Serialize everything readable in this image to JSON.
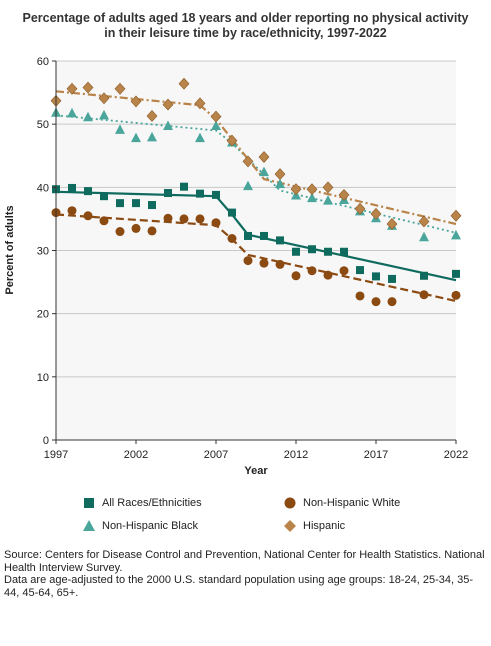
{
  "chart_data": {
    "type": "scatter",
    "title": "Percentage of adults aged 18 years and older reporting no physical activity in their leisure time by race/ethnicity, 1997-2022",
    "xlabel": "Year",
    "ylabel": "Percent of adults",
    "xlim": [
      1997,
      2022
    ],
    "ylim": [
      0,
      60
    ],
    "x_ticks": [
      "1997",
      "2002",
      "2007",
      "2012",
      "2017",
      "2022"
    ],
    "y_ticks": [
      "0",
      "10",
      "20",
      "30",
      "40",
      "50",
      "60"
    ],
    "grid": "horizontal",
    "legend_position": "bottom",
    "series": [
      {
        "name": "All Races/Ethnicities",
        "color": "#0f6b5e",
        "marker": "square",
        "trend_style": "solid",
        "x": [
          1997,
          1998,
          1999,
          2000,
          2001,
          2002,
          2003,
          2004,
          2005,
          2006,
          2007,
          2008,
          2009,
          2010,
          2011,
          2012,
          2013,
          2014,
          2015,
          2016,
          2017,
          2018,
          2020,
          2022
        ],
        "y": [
          39.7,
          39.9,
          39.4,
          38.6,
          37.5,
          37.5,
          37.2,
          39.1,
          40.1,
          39.0,
          38.8,
          36.0,
          32.3,
          32.3,
          31.6,
          29.8,
          30.2,
          29.8,
          29.8,
          26.9,
          25.9,
          25.5,
          26.0,
          26.3
        ],
        "trend": [
          [
            1997,
            39.3
          ],
          [
            2007,
            38.6
          ],
          [
            2008,
            35.7
          ],
          [
            2009,
            32.5
          ],
          [
            2022,
            25.3
          ]
        ]
      },
      {
        "name": "Non-Hispanic White",
        "color": "#8b4a12",
        "marker": "circle",
        "trend_style": "dashed",
        "x": [
          1997,
          1998,
          1999,
          2000,
          2001,
          2002,
          2003,
          2004,
          2005,
          2006,
          2007,
          2008,
          2009,
          2010,
          2011,
          2012,
          2013,
          2014,
          2015,
          2016,
          2017,
          2018,
          2020,
          2022
        ],
        "y": [
          36.0,
          36.3,
          35.5,
          34.7,
          33.0,
          33.5,
          33.1,
          35.1,
          35.0,
          35.0,
          34.4,
          31.9,
          28.4,
          28.0,
          27.8,
          26.0,
          26.8,
          26.1,
          26.8,
          22.8,
          21.9,
          21.9,
          23.0,
          22.9
        ],
        "trend": [
          [
            1997,
            35.7
          ],
          [
            2007,
            34.0
          ],
          [
            2008,
            31.8
          ],
          [
            2009,
            29.3
          ],
          [
            2022,
            22.0
          ]
        ]
      },
      {
        "name": "Non-Hispanic Black",
        "color": "#4aa59b",
        "marker": "triangle",
        "trend_style": "dotted",
        "x": [
          1997,
          1998,
          1999,
          2000,
          2001,
          2002,
          2003,
          2004,
          2006,
          2007,
          2008,
          2009,
          2010,
          2011,
          2012,
          2013,
          2014,
          2015,
          2016,
          2017,
          2018,
          2020,
          2022
        ],
        "y": [
          51.8,
          51.7,
          51.1,
          51.4,
          49.1,
          47.8,
          47.9,
          49.7,
          47.8,
          49.7,
          47.1,
          40.2,
          42.4,
          40.5,
          38.7,
          38.3,
          37.9,
          38.0,
          36.2,
          35.1,
          33.9,
          32.1,
          32.4
        ],
        "trend": [
          [
            1997,
            51.4
          ],
          [
            2007,
            49.0
          ],
          [
            2008,
            47.0
          ],
          [
            2011,
            39.5
          ],
          [
            2022,
            32.8
          ]
        ]
      },
      {
        "name": "Hispanic",
        "color": "#b9844a",
        "marker": "diamond",
        "trend_style": "dashdot",
        "x": [
          1997,
          1998,
          1999,
          2000,
          2001,
          2002,
          2003,
          2004,
          2005,
          2006,
          2007,
          2008,
          2009,
          2010,
          2011,
          2012,
          2013,
          2014,
          2015,
          2016,
          2017,
          2018,
          2020,
          2022
        ],
        "y": [
          53.7,
          55.6,
          55.8,
          54.1,
          55.6,
          53.6,
          51.3,
          53.1,
          56.4,
          53.3,
          51.2,
          47.4,
          44.1,
          44.8,
          42.1,
          39.7,
          39.7,
          40.0,
          38.8,
          36.6,
          35.8,
          34.2,
          34.6,
          35.5
        ],
        "trend": [
          [
            1997,
            55.2
          ],
          [
            2006,
            53.0
          ],
          [
            2007,
            50.8
          ],
          [
            2010,
            41.3
          ],
          [
            2022,
            34.2
          ]
        ]
      }
    ]
  },
  "legend": {
    "items": [
      {
        "label": "All Races/Ethnicities"
      },
      {
        "label": "Non-Hispanic White"
      },
      {
        "label": "Non-Hispanic Black"
      },
      {
        "label": "Hispanic"
      }
    ]
  },
  "footer": {
    "source": "Source: Centers for Disease Control and Prevention, National Center for Health Statistics. National Health Interview Survey.",
    "note": "Data are age-adjusted to the 2000 U.S. standard population using age groups: 18-24, 25-34, 35-44, 45-64, 65+."
  }
}
